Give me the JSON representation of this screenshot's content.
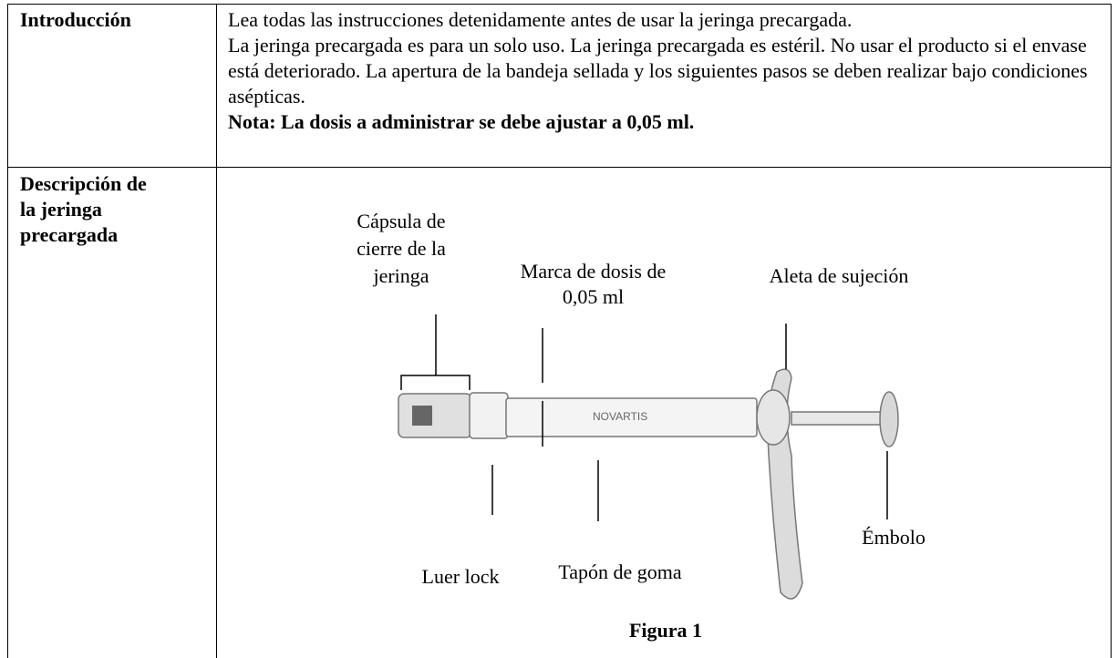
{
  "table": {
    "rows": [
      {
        "label": "Introducción",
        "paragraphs": [
          "Lea todas las instrucciones detenidamente antes de usar la jeringa precargada.",
          "La jeringa precargada es para un solo uso. La jeringa precargada es estéril. No usar el producto si el envase está deteriorado. La apertura de la bandeja sellada y los siguientes pasos se deben realizar bajo condiciones asépticas."
        ],
        "note": "Nota: La dosis a administrar se debe ajustar a 0,05 ml."
      },
      {
        "label": "Descripción de la jeringa precargada",
        "figure": {
          "labels": [
            "Cápsula de cierre de la jeringa",
            "Marca de dosis de 0,05 ml",
            "Aleta de sujeción",
            "Luer lock",
            "Tapón de goma",
            "Émbolo"
          ],
          "caption": "Figura 1"
        }
      }
    ]
  }
}
